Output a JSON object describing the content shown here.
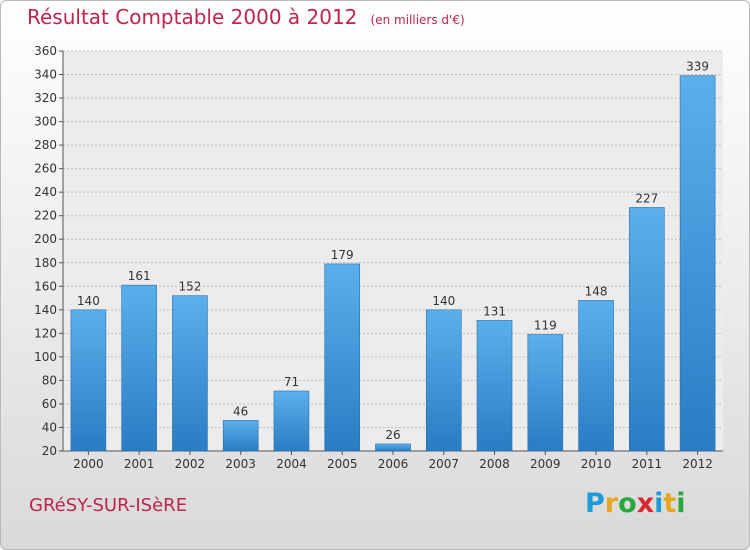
{
  "title": "Résultat Comptable 2000 à 2012",
  "unit_label": "(en milliers d'€)",
  "commune": "GRéSY-SUR-ISèRE",
  "brand": {
    "letters": [
      "P",
      "r",
      "o",
      "x",
      "i",
      "t",
      "i"
    ],
    "colors": [
      "#1f9bd7",
      "#e5a722",
      "#2aa63e",
      "#d8282e",
      "#1f9bd7",
      "#e5a722",
      "#2aa63e"
    ]
  },
  "colors": {
    "bar_light": "#5ab0ec",
    "bar_dark": "#2a7cc3",
    "accent": "#c0234c"
  },
  "chart_data": {
    "type": "bar",
    "categories": [
      "2000",
      "2001",
      "2002",
      "2003",
      "2004",
      "2005",
      "2006",
      "2007",
      "2008",
      "2009",
      "2010",
      "2011",
      "2012"
    ],
    "values": [
      140,
      161,
      152,
      46,
      71,
      179,
      26,
      140,
      131,
      119,
      148,
      227,
      339
    ],
    "ylim": [
      20,
      360
    ],
    "yticks": [
      20,
      40,
      60,
      80,
      100,
      120,
      140,
      160,
      180,
      200,
      220,
      240,
      260,
      280,
      300,
      320,
      340,
      360
    ],
    "grid": true
  }
}
